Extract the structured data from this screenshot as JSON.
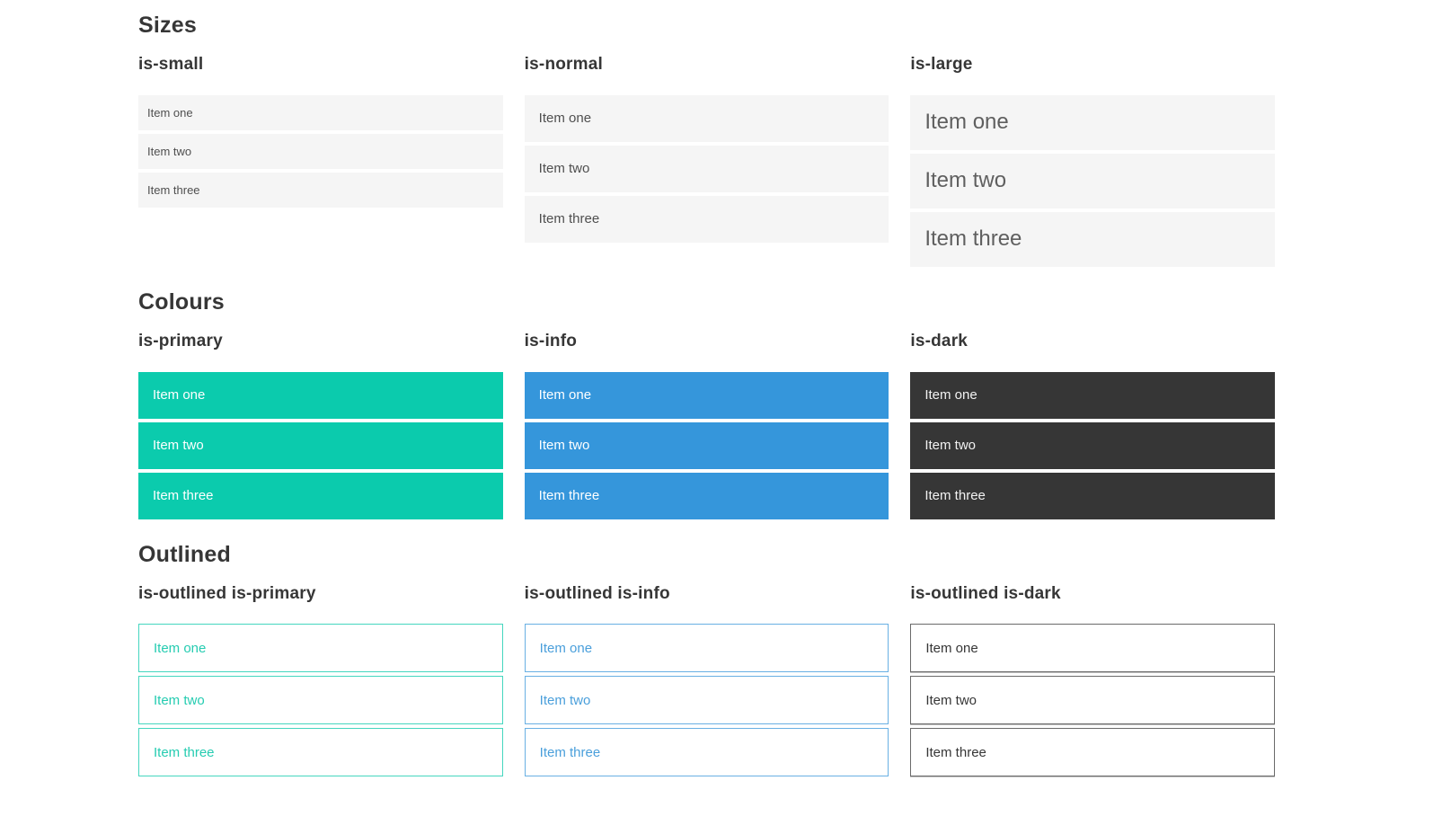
{
  "colors": {
    "primary": "#0bcbad",
    "info": "#3596db",
    "dark": "#363636",
    "item_background": "#f5f5f5",
    "heading_text": "#363636"
  },
  "sections": [
    {
      "title": "Sizes",
      "columns": [
        {
          "heading": "is-small",
          "items": [
            "Item one",
            "Item two",
            "Item three"
          ]
        },
        {
          "heading": "is-normal",
          "items": [
            "Item one",
            "Item two",
            "Item three"
          ]
        },
        {
          "heading": "is-large",
          "items": [
            "Item one",
            "Item two",
            "Item three"
          ]
        }
      ]
    },
    {
      "title": "Colours",
      "columns": [
        {
          "heading": "is-primary",
          "items": [
            "Item one",
            "Item two",
            "Item three"
          ]
        },
        {
          "heading": "is-info",
          "items": [
            "Item one",
            "Item two",
            "Item three"
          ]
        },
        {
          "heading": "is-dark",
          "items": [
            "Item one",
            "Item two",
            "Item three"
          ]
        }
      ]
    },
    {
      "title": "Outlined",
      "columns": [
        {
          "heading": "is-outlined is-primary",
          "items": [
            "Item one",
            "Item two",
            "Item three"
          ]
        },
        {
          "heading": "is-outlined is-info",
          "items": [
            "Item one",
            "Item two",
            "Item three"
          ]
        },
        {
          "heading": "is-outlined is-dark",
          "items": [
            "Item one",
            "Item two",
            "Item three"
          ]
        }
      ]
    }
  ]
}
